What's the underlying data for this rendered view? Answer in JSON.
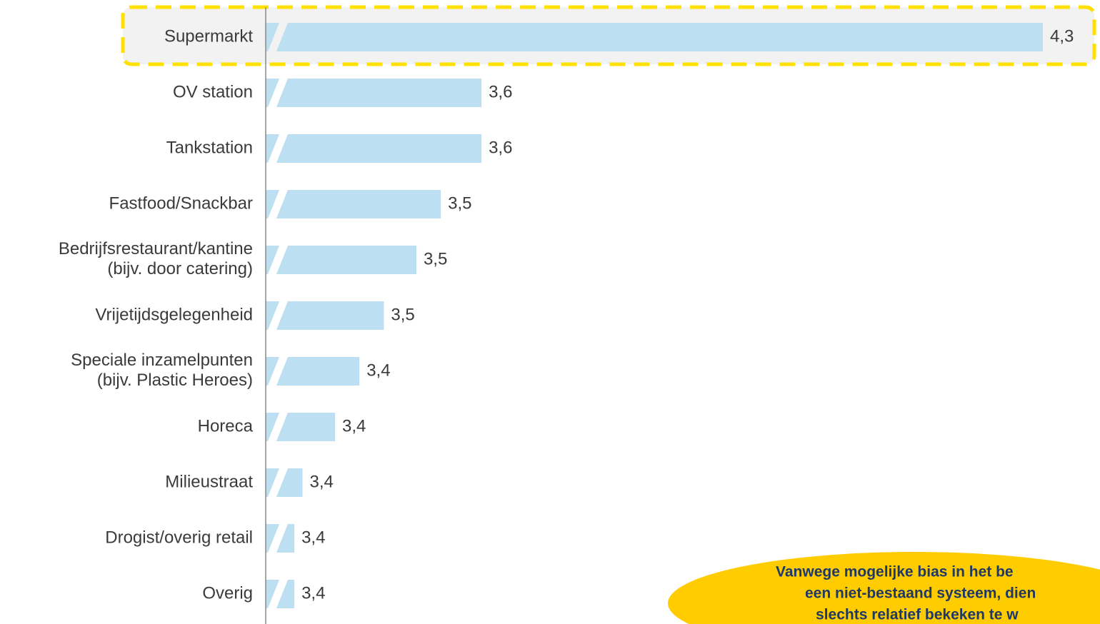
{
  "chart_data": {
    "type": "bar",
    "orientation": "horizontal",
    "categories": [
      "Supermarkt",
      "OV station",
      "Tankstation",
      "Fastfood/Snackbar",
      "Bedrijfsrestaurant/kantine\n(bijv. door catering)",
      "Vrijetijdsgelegenheid",
      "Speciale inzamelpunten\n(bijv. Plastic Heroes)",
      "Horeca",
      "Milieustraat",
      "Drogist/overig retail",
      "Overig"
    ],
    "values": [
      4.28,
      3.59,
      3.59,
      3.54,
      3.51,
      3.47,
      3.44,
      3.41,
      3.37,
      3.36,
      3.36
    ],
    "value_labels": [
      "4,3",
      "3,6",
      "3,6",
      "3,5",
      "3,5",
      "3,5",
      "3,4",
      "3,4",
      "3,4",
      "3,4",
      "3,4"
    ],
    "color": "#bddff2",
    "highlight_color": "#ffe000",
    "xlim": [
      3.345,
      4.28
    ],
    "axis_break": true,
    "annotation": [
      "Vanwege mogelijke bias in het be",
      "een niet-bestaand systeem, dien",
      "slechts relatief bekeken te w"
    ],
    "annotation_color": "#ffcc00"
  }
}
